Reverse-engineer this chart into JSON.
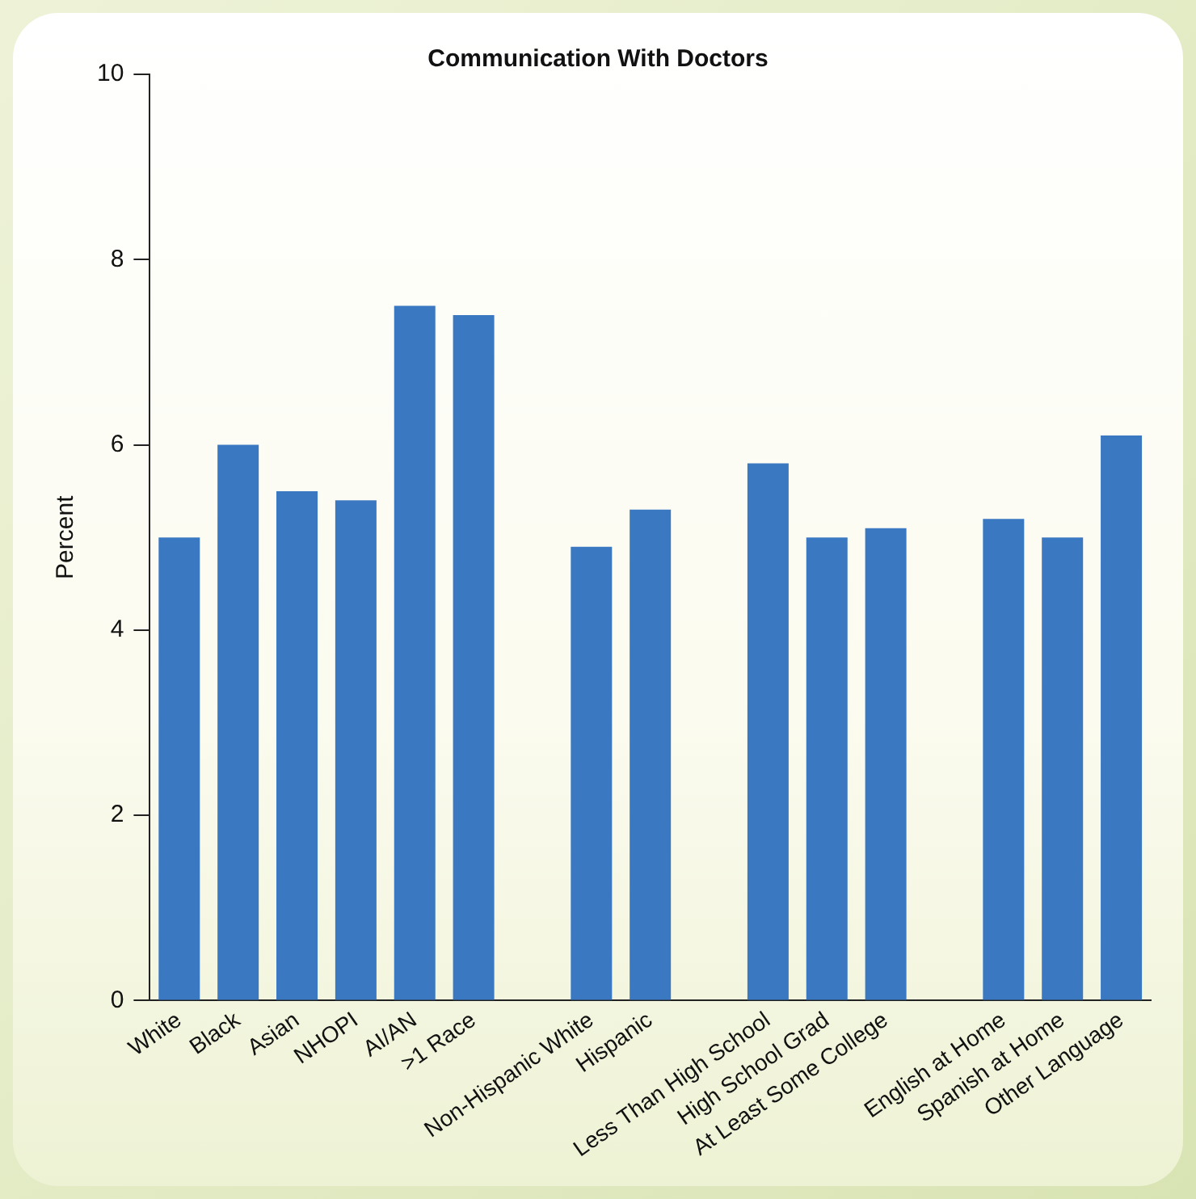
{
  "chart_data": {
    "type": "bar",
    "title": "Communication With Doctors",
    "ylabel": "Percent",
    "categories": [
      "White",
      "Black",
      "Asian",
      "NHOPI",
      "AI/AN",
      ">1 Race",
      null,
      "Non-Hispanic White",
      "Hispanic",
      null,
      "Less Than High School",
      "High School Grad",
      "At Least Some College",
      null,
      "English at Home",
      "Spanish at Home",
      "Other Language"
    ],
    "values": [
      5.0,
      6.0,
      5.5,
      5.4,
      7.5,
      7.4,
      null,
      4.9,
      5.3,
      null,
      5.8,
      5.0,
      5.1,
      null,
      5.2,
      5.0,
      6.1
    ],
    "color": "#3b78c2",
    "ylim": [
      0,
      10
    ],
    "yticks": [
      0,
      2,
      4,
      6,
      8,
      10
    ],
    "grid": false,
    "legend": false
  }
}
